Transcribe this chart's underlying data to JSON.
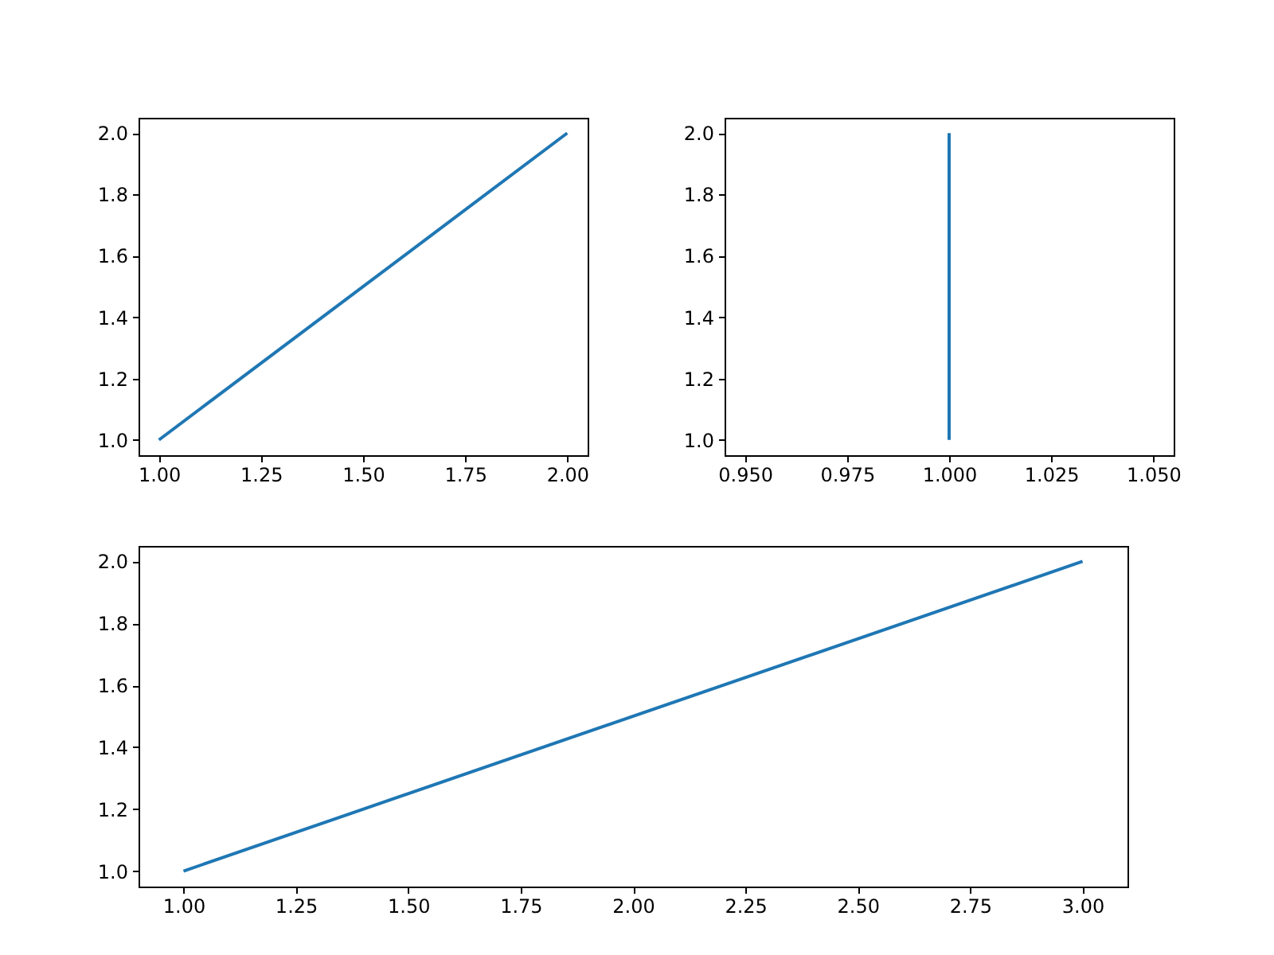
{
  "chart_data": [
    {
      "type": "line",
      "x": [
        1,
        2
      ],
      "series": [
        {
          "color": "#1f77b4",
          "values": [
            1,
            2
          ]
        }
      ],
      "xlim": [
        0.95,
        2.05
      ],
      "ylim": [
        0.95,
        2.05
      ],
      "xticks": [
        {
          "value": 1,
          "label": "1.00"
        },
        {
          "value": 1.25,
          "label": "1.25"
        },
        {
          "value": 1.5,
          "label": "1.50"
        },
        {
          "value": 1.75,
          "label": "1.75"
        },
        {
          "value": 2,
          "label": "2.00"
        }
      ],
      "yticks": [
        {
          "value": 1,
          "label": "1.0"
        },
        {
          "value": 1.2,
          "label": "1.2"
        },
        {
          "value": 1.4,
          "label": "1.4"
        },
        {
          "value": 1.6,
          "label": "1.6"
        },
        {
          "value": 1.8,
          "label": "1.8"
        },
        {
          "value": 2,
          "label": "2.0"
        }
      ],
      "grid": false,
      "marker": "none",
      "line_style": "solid"
    },
    {
      "type": "line",
      "x": [
        1,
        1
      ],
      "series": [
        {
          "color": "#1f77b4",
          "values": [
            1,
            2
          ]
        }
      ],
      "xlim": [
        0.945,
        1.055
      ],
      "ylim": [
        0.95,
        2.05
      ],
      "xticks": [
        {
          "value": 0.95,
          "label": "0.950"
        },
        {
          "value": 0.975,
          "label": "0.975"
        },
        {
          "value": 1,
          "label": "1.000"
        },
        {
          "value": 1.025,
          "label": "1.025"
        },
        {
          "value": 1.05,
          "label": "1.050"
        }
      ],
      "yticks": [
        {
          "value": 1,
          "label": "1.0"
        },
        {
          "value": 1.2,
          "label": "1.2"
        },
        {
          "value": 1.4,
          "label": "1.4"
        },
        {
          "value": 1.6,
          "label": "1.6"
        },
        {
          "value": 1.8,
          "label": "1.8"
        },
        {
          "value": 2,
          "label": "2.0"
        }
      ],
      "grid": false,
      "marker": "none",
      "line_style": "solid"
    },
    {
      "type": "line",
      "x": [
        1,
        3
      ],
      "series": [
        {
          "color": "#1f77b4",
          "values": [
            1,
            2
          ]
        }
      ],
      "xlim": [
        0.9,
        3.1
      ],
      "ylim": [
        0.95,
        2.05
      ],
      "xticks": [
        {
          "value": 1,
          "label": "1.00"
        },
        {
          "value": 1.25,
          "label": "1.25"
        },
        {
          "value": 1.5,
          "label": "1.50"
        },
        {
          "value": 1.75,
          "label": "1.75"
        },
        {
          "value": 2,
          "label": "2.00"
        },
        {
          "value": 2.25,
          "label": "2.25"
        },
        {
          "value": 2.5,
          "label": "2.50"
        },
        {
          "value": 2.75,
          "label": "2.75"
        },
        {
          "value": 3,
          "label": "3.00"
        }
      ],
      "yticks": [
        {
          "value": 1,
          "label": "1.0"
        },
        {
          "value": 1.2,
          "label": "1.2"
        },
        {
          "value": 1.4,
          "label": "1.4"
        },
        {
          "value": 1.6,
          "label": "1.6"
        },
        {
          "value": 1.8,
          "label": "1.8"
        },
        {
          "value": 2,
          "label": "2.0"
        }
      ],
      "grid": false,
      "marker": "none",
      "line_style": "solid"
    }
  ]
}
